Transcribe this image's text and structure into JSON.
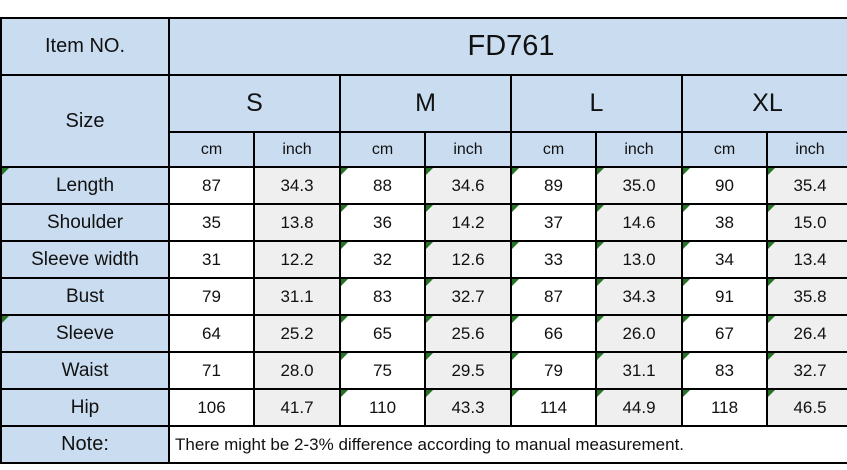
{
  "table": {
    "item_no_label": "Item NO.",
    "item_no_value": "FD761",
    "size_label": "Size",
    "sizes": [
      "S",
      "M",
      "L",
      "XL"
    ],
    "unit_labels": [
      "cm",
      "inch"
    ],
    "rows": [
      {
        "label": "Length",
        "flagged_label": true,
        "values": [
          "87",
          "34.3",
          "88",
          "34.6",
          "89",
          "35.0",
          "90",
          "35.4"
        ]
      },
      {
        "label": "Shoulder",
        "flagged_label": false,
        "values": [
          "35",
          "13.8",
          "36",
          "14.2",
          "37",
          "14.6",
          "38",
          "15.0"
        ]
      },
      {
        "label": "Sleeve width",
        "flagged_label": false,
        "values": [
          "31",
          "12.2",
          "32",
          "12.6",
          "33",
          "13.0",
          "34",
          "13.4"
        ]
      },
      {
        "label": "Bust",
        "flagged_label": false,
        "values": [
          "79",
          "31.1",
          "83",
          "32.7",
          "87",
          "34.3",
          "91",
          "35.8"
        ]
      },
      {
        "label": "Sleeve",
        "flagged_label": true,
        "values": [
          "64",
          "25.2",
          "65",
          "25.6",
          "66",
          "26.0",
          "67",
          "26.4"
        ]
      },
      {
        "label": "Waist",
        "flagged_label": false,
        "values": [
          "71",
          "28.0",
          "75",
          "29.5",
          "79",
          "31.1",
          "83",
          "32.7"
        ]
      },
      {
        "label": "Hip",
        "flagged_label": false,
        "values": [
          "106",
          "41.7",
          "110",
          "43.3",
          "114",
          "44.9",
          "118",
          "46.5"
        ]
      }
    ],
    "flagged_value_columns": [
      2,
      3,
      4,
      5,
      6,
      7
    ],
    "note_label": "Note:",
    "note_text": "There might be 2-3% difference according to manual measurement."
  },
  "colors": {
    "header_fill": "#cadcf0",
    "inch_fill": "#efefef",
    "border": "#000000",
    "flag_green": "#267326",
    "text": "#111111"
  }
}
